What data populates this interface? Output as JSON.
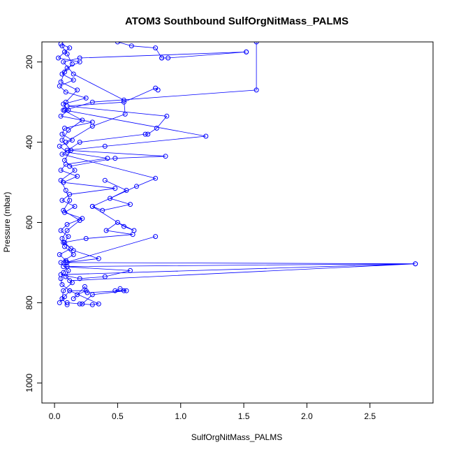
{
  "chart_data": {
    "type": "scatter",
    "title": "ATOM3 Southbound SulfOrgNitMass_PALMS",
    "xlabel": "SulfOrgNitMass_PALMS",
    "ylabel": "Pressure (mbar)",
    "xlim": [
      -0.1,
      3.0
    ],
    "ylim": [
      1050,
      150
    ],
    "y_reversed": true,
    "x_ticks": [
      0.0,
      0.5,
      1.0,
      1.5,
      2.0,
      2.5
    ],
    "x_tick_labels": [
      "0.0",
      "0.5",
      "1.0",
      "1.5",
      "2.0",
      "2.5"
    ],
    "y_ticks": [
      200,
      400,
      600,
      800,
      1000
    ],
    "y_tick_labels": [
      "200",
      "400",
      "600",
      "800",
      "1000"
    ],
    "grid": false,
    "legend": "none",
    "marker": "open-circle",
    "connected": true,
    "colors": {
      "series": "#0000ff",
      "axis": "#000000"
    },
    "series": [
      {
        "x": [
          0.05,
          0.12,
          0.08,
          0.03,
          0.2,
          0.1,
          0.06,
          0.15,
          0.04,
          0.09,
          0.25,
          0.07,
          0.11,
          0.05,
          0.3,
          0.08,
          0.06,
          0.14,
          0.04,
          0.1,
          0.42,
          0.09,
          0.05,
          0.18,
          0.07,
          0.48,
          0.12,
          0.06,
          0.16,
          0.08,
          0.22,
          0.1,
          0.05,
          0.11,
          0.08,
          0.13,
          0.04,
          0.09,
          0.1,
          0.07,
          0.05,
          0.06,
          0.12,
          0.08,
          0.04
        ],
        "y": [
          155,
          165,
          175,
          190,
          200,
          215,
          230,
          245,
          260,
          275,
          290,
          305,
          320,
          335,
          350,
          365,
          380,
          395,
          410,
          425,
          440,
          455,
          470,
          485,
          500,
          515,
          530,
          545,
          560,
          575,
          590,
          605,
          620,
          635,
          650,
          665,
          680,
          695,
          710,
          725,
          740,
          755,
          770,
          785,
          800
        ]
      },
      {
        "x": [
          0.06,
          0.1,
          0.14,
          0.08,
          0.05,
          0.18,
          0.09,
          0.07,
          0.22,
          0.11,
          0.06,
          0.13,
          0.08,
          0.16,
          0.05,
          0.09,
          0.12,
          0.07,
          0.2,
          0.1,
          0.06,
          0.08,
          0.15,
          0.05,
          0.11,
          0.09,
          0.14,
          0.07,
          0.06,
          0.1
        ],
        "y": [
          160,
          180,
          205,
          225,
          250,
          270,
          300,
          320,
          345,
          370,
          395,
          420,
          445,
          470,
          495,
          520,
          545,
          570,
          595,
          620,
          640,
          660,
          680,
          700,
          720,
          735,
          750,
          770,
          790,
          805
        ]
      },
      {
        "x": [
          0.5,
          0.61,
          0.8,
          0.85,
          0.85,
          0.9,
          1.52,
          1.52,
          0.2,
          0.07,
          0.15,
          0.55,
          0.56,
          0.3,
          0.09
        ],
        "y": [
          150,
          160,
          165,
          190,
          190,
          190,
          175,
          175,
          190,
          200,
          230,
          295,
          330,
          360,
          400
        ]
      },
      {
        "x": [
          1.6,
          1.6,
          0.3,
          0.08,
          1.2,
          0.4,
          0.1,
          0.88,
          0.48,
          0.12
        ],
        "y": [
          150,
          270,
          300,
          320,
          385,
          410,
          420,
          435,
          440,
          460
        ]
      },
      {
        "x": [
          0.82,
          0.8,
          0.55,
          0.1,
          0.89,
          0.81,
          0.74,
          0.72,
          0.2,
          0.06,
          0.8,
          0.65,
          0.3
        ],
        "y": [
          270,
          265,
          300,
          310,
          335,
          365,
          380,
          380,
          400,
          430,
          490,
          510,
          560
        ]
      },
      {
        "x": [
          0.4,
          0.57,
          0.44,
          0.6,
          0.38,
          0.3,
          0.55,
          0.63,
          0.5,
          0.41,
          0.62,
          0.25,
          0.07,
          0.15,
          0.35,
          0.09,
          0.8
        ],
        "y": [
          495,
          520,
          540,
          555,
          570,
          560,
          610,
          620,
          600,
          620,
          630,
          640,
          650,
          670,
          690,
          700,
          635
        ]
      },
      {
        "x": [
          0.1,
          2.86,
          0.07,
          0.6,
          0.4,
          0.2,
          0.05,
          2.86,
          0.12
        ],
        "y": [
          700,
          703,
          710,
          720,
          735,
          740,
          730,
          703,
          745
        ]
      },
      {
        "x": [
          0.1,
          0.2,
          0.3,
          0.35,
          0.12,
          0.25,
          0.18,
          0.15,
          0.24,
          0.26,
          0.55,
          0.48,
          0.52,
          0.57,
          0.3,
          0.22
        ],
        "y": [
          800,
          803,
          805,
          803,
          770,
          770,
          780,
          790,
          760,
          775,
          770,
          770,
          765,
          770,
          780,
          803
        ]
      }
    ]
  }
}
